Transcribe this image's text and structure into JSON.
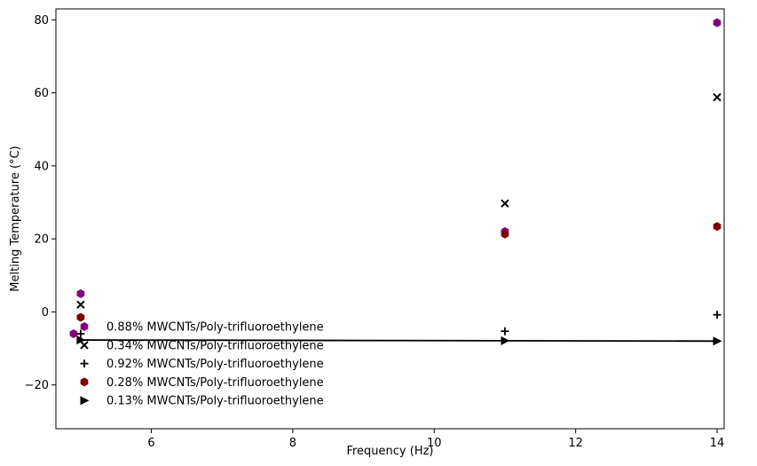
{
  "chart_data": {
    "type": "scatter",
    "xlabel": "Frequency (Hz)",
    "ylabel": "Melting Temperature (°C)",
    "xlim": [
      4.65,
      14.1
    ],
    "ylim": [
      -32,
      83
    ],
    "xticks": [
      6,
      8,
      10,
      12,
      14
    ],
    "yticks": [
      -20,
      0,
      20,
      40,
      60,
      80
    ],
    "grid": false,
    "legend_position": "lower-left",
    "series": [
      {
        "name": "0.88% MWCNTs/Poly-trifluoroethylene",
        "marker": "hexagon",
        "color": "#800080",
        "x": [
          4.9,
          5.0,
          11.0,
          14.0
        ],
        "y": [
          -6,
          5,
          22,
          79.2
        ]
      },
      {
        "name": "0.34% MWCNTs/Poly-trifluoroethylene",
        "marker": "x",
        "color": "#000000",
        "x": [
          5.0,
          11.0,
          14.0
        ],
        "y": [
          2,
          29.7,
          58.8
        ]
      },
      {
        "name": "0.92% MWCNTs/Poly-trifluoroethylene",
        "marker": "plus",
        "color": "#000000",
        "x": [
          5.0,
          11.0,
          14.0
        ],
        "y": [
          -6,
          -5.3,
          -0.8
        ]
      },
      {
        "name": "0.28% MWCNTs/Poly-trifluoroethylene",
        "marker": "hexagon",
        "color": "#800000",
        "x": [
          5.0,
          11.0,
          14.0
        ],
        "y": [
          -1.5,
          21.3,
          23.4
        ]
      },
      {
        "name": "0.13% MWCNTs/Poly-trifluoroethylene",
        "marker": "triangle-right",
        "color": "#000000",
        "line": true,
        "x": [
          5.0,
          11.0,
          14.0
        ],
        "y": [
          -7.7,
          -7.9,
          -8.0
        ]
      }
    ]
  }
}
